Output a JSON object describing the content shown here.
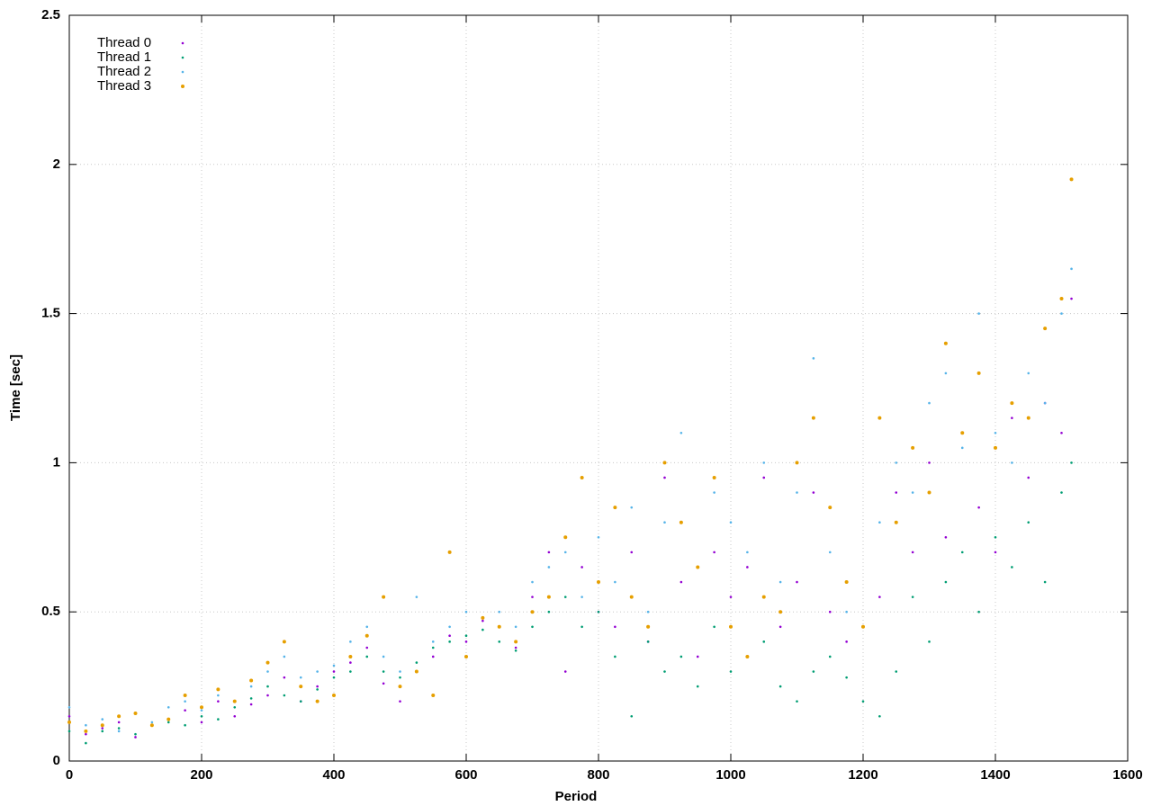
{
  "chart_data": {
    "type": "scatter",
    "xlabel": "Period",
    "ylabel": "Time [sec]",
    "x": [
      0,
      25,
      50,
      75,
      100,
      125,
      150,
      175,
      200,
      225,
      250,
      275,
      300,
      325,
      350,
      375,
      400,
      425,
      450,
      475,
      500,
      525,
      550,
      575,
      600,
      625,
      650,
      675,
      700,
      725,
      750,
      775,
      800,
      825,
      850,
      875,
      900,
      925,
      950,
      975,
      1000,
      1025,
      1050,
      1075,
      1100,
      1125,
      1150,
      1175,
      1200,
      1225,
      1250,
      1275,
      1300,
      1325,
      1350,
      1375,
      1400,
      1425,
      1450,
      1475,
      1500,
      1515
    ],
    "series": [
      {
        "name": "Thread 0",
        "color": "#9400d3",
        "values": [
          0.15,
          0.09,
          0.11,
          0.13,
          0.08,
          0.12,
          0.14,
          0.17,
          0.13,
          0.2,
          0.15,
          0.19,
          0.22,
          0.28,
          0.2,
          0.25,
          0.3,
          0.33,
          0.38,
          0.26,
          0.2,
          0.3,
          0.35,
          0.42,
          0.4,
          0.47,
          0.45,
          0.38,
          0.55,
          0.7,
          0.3,
          0.65,
          0.5,
          0.45,
          0.7,
          0.4,
          0.95,
          0.6,
          0.35,
          0.7,
          0.55,
          0.65,
          0.95,
          0.45,
          0.6,
          0.9,
          0.5,
          0.4,
          0.45,
          0.55,
          0.9,
          0.7,
          1.0,
          0.75,
          1.1,
          0.85,
          0.7,
          1.15,
          0.95,
          1.2,
          1.1,
          1.55
        ]
      },
      {
        "name": "Thread 1",
        "color": "#009e73",
        "values": [
          0.1,
          0.06,
          0.1,
          0.11,
          0.09,
          0.12,
          0.13,
          0.12,
          0.15,
          0.14,
          0.18,
          0.21,
          0.25,
          0.22,
          0.2,
          0.24,
          0.28,
          0.3,
          0.35,
          0.3,
          0.28,
          0.33,
          0.38,
          0.4,
          0.42,
          0.44,
          0.4,
          0.37,
          0.45,
          0.5,
          0.55,
          0.45,
          0.5,
          0.35,
          0.15,
          0.4,
          0.3,
          0.35,
          0.25,
          0.45,
          0.3,
          0.35,
          0.4,
          0.25,
          0.2,
          0.3,
          0.35,
          0.28,
          0.2,
          0.15,
          0.3,
          0.55,
          0.4,
          0.6,
          0.7,
          0.5,
          0.75,
          0.65,
          0.8,
          0.6,
          0.9,
          1.0
        ]
      },
      {
        "name": "Thread 2",
        "color": "#56b4e9",
        "values": [
          0.18,
          0.12,
          0.14,
          0.1,
          0.16,
          0.13,
          0.18,
          0.2,
          0.17,
          0.22,
          0.2,
          0.25,
          0.3,
          0.35,
          0.28,
          0.3,
          0.32,
          0.4,
          0.45,
          0.35,
          0.3,
          0.55,
          0.4,
          0.45,
          0.5,
          0.48,
          0.5,
          0.45,
          0.6,
          0.65,
          0.7,
          0.55,
          0.75,
          0.6,
          0.85,
          0.5,
          0.8,
          1.1,
          0.65,
          0.9,
          0.8,
          0.7,
          1.0,
          0.6,
          0.9,
          1.35,
          0.7,
          0.5,
          0.45,
          0.8,
          1.0,
          0.9,
          1.2,
          1.3,
          1.05,
          1.5,
          1.1,
          1.0,
          1.3,
          1.2,
          1.5,
          1.65
        ]
      },
      {
        "name": "Thread 3",
        "color": "#e69f00",
        "values": [
          0.13,
          0.1,
          0.12,
          0.15,
          0.16,
          0.12,
          0.14,
          0.22,
          0.18,
          0.24,
          0.2,
          0.27,
          0.33,
          0.4,
          0.25,
          0.2,
          0.22,
          0.35,
          0.42,
          0.55,
          0.25,
          0.3,
          0.22,
          0.7,
          0.35,
          0.48,
          0.45,
          0.4,
          0.5,
          0.55,
          0.75,
          0.95,
          0.6,
          0.85,
          0.55,
          0.45,
          1.0,
          0.8,
          0.65,
          0.95,
          0.45,
          0.35,
          0.55,
          0.5,
          1.0,
          1.15,
          0.85,
          0.6,
          0.45,
          1.15,
          0.8,
          1.05,
          0.9,
          1.4,
          1.1,
          1.3,
          1.05,
          1.2,
          1.15,
          1.45,
          1.55,
          1.95
        ]
      }
    ],
    "xlim": [
      0,
      1600
    ],
    "xticks": [
      0,
      200,
      400,
      600,
      800,
      1000,
      1200,
      1400,
      1600
    ],
    "ylim": [
      0,
      2.5
    ],
    "yticks": [
      0,
      0.5,
      1,
      1.5,
      2,
      2.5
    ],
    "grid": true,
    "legend": "upper-left"
  }
}
